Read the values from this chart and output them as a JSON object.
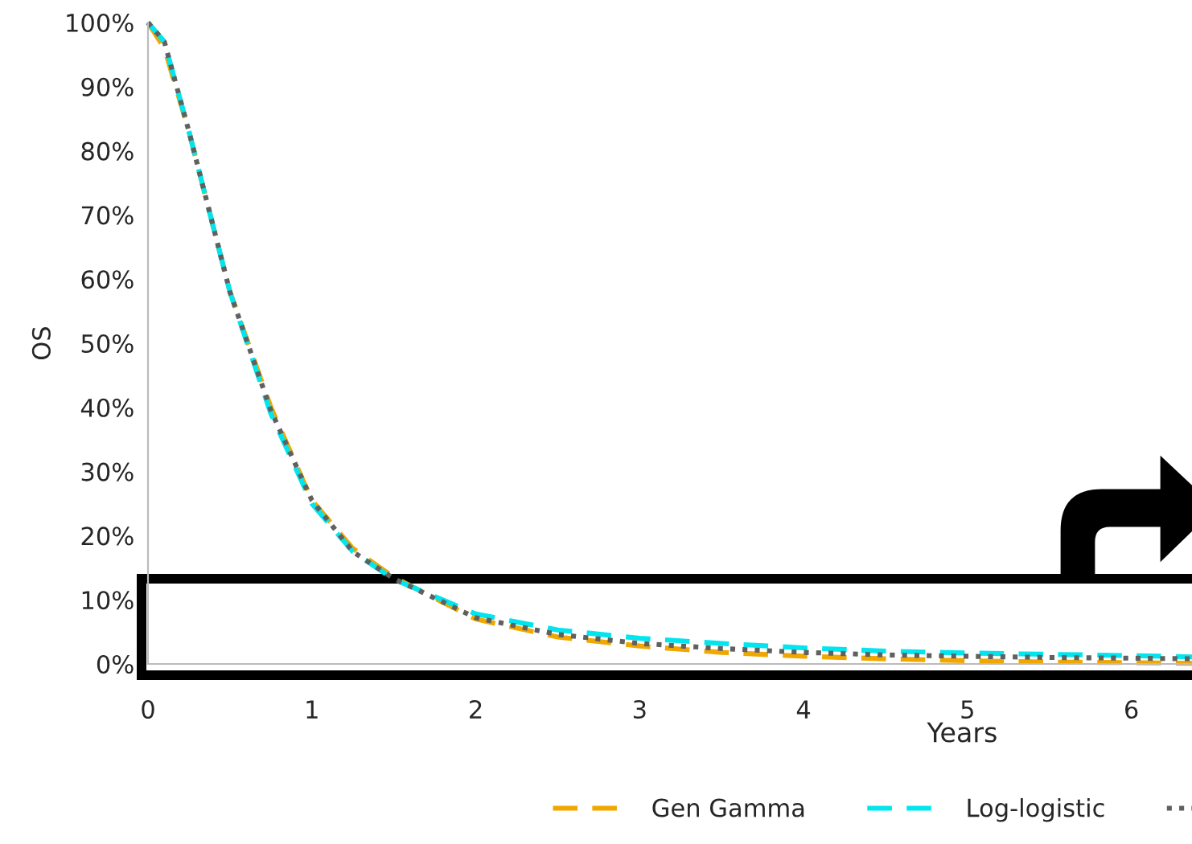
{
  "chart_data": {
    "type": "line",
    "xlabel": "Years",
    "ylabel": "OS",
    "xlim": [
      0,
      6.37
    ],
    "xticks": [
      0,
      1,
      2,
      3,
      4,
      5,
      6
    ],
    "ylim": [
      0,
      100
    ],
    "yticks": [
      {
        "value": 0,
        "label": "0%"
      },
      {
        "value": 10,
        "label": "10%"
      },
      {
        "value": 20,
        "label": "20%"
      },
      {
        "value": 30,
        "label": "30%"
      },
      {
        "value": 40,
        "label": "40%"
      },
      {
        "value": 50,
        "label": "50%"
      },
      {
        "value": 60,
        "label": "60%"
      },
      {
        "value": 70,
        "label": "70%"
      },
      {
        "value": 80,
        "label": "80%"
      },
      {
        "value": 90,
        "label": "90%"
      },
      {
        "value": 100,
        "label": "100%"
      }
    ],
    "x": [
      0,
      0.1,
      0.25,
      0.5,
      0.75,
      1,
      1.25,
      1.5,
      2,
      2.5,
      3,
      3.5,
      4,
      4.5,
      5,
      5.5,
      6,
      6.37
    ],
    "series": [
      {
        "name": "Gen Gamma",
        "color": "#f0a800",
        "line_style": "dashed",
        "values": [
          100,
          96,
          83,
          58,
          40,
          25.5,
          18,
          13.5,
          7,
          4.2,
          2.8,
          1.8,
          1.2,
          0.8,
          0.5,
          0.3,
          0.2,
          0.1
        ]
      },
      {
        "name": "Log-logistic",
        "color": "#00e5ee",
        "line_style": "dashed",
        "values": [
          100,
          97,
          83,
          58,
          39,
          25,
          17.5,
          13.2,
          7.8,
          5.3,
          4,
          3.2,
          2.5,
          2,
          1.7,
          1.5,
          1.3,
          1.1
        ]
      },
      {
        "color": "#606060",
        "line_style": "dotted",
        "values": [
          100,
          97,
          83,
          58,
          39.5,
          25.5,
          17.5,
          13.3,
          7.2,
          4.6,
          3.2,
          2.4,
          1.8,
          1.4,
          1.2,
          1,
          0.9,
          0.8
        ]
      }
    ],
    "grid": false,
    "legend": "bottom",
    "marker": "none"
  }
}
